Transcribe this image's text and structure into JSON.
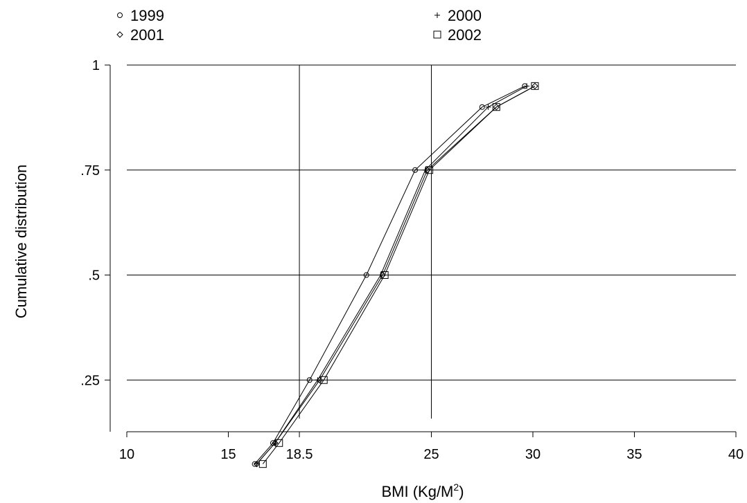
{
  "chart_data": {
    "type": "line",
    "xlabel": "BMI (Kg/M",
    "xlabel_sup": "2",
    "xlabel_end": ")",
    "ylabel": "Cumulative distribution",
    "xlim": [
      10,
      40
    ],
    "ylim": [
      0,
      1
    ],
    "x_ticks": [
      10,
      15,
      18.5,
      25,
      30,
      35,
      40
    ],
    "x_tick_labels": [
      "10",
      "15",
      "18.5",
      "25",
      "30",
      "35",
      "40"
    ],
    "y_ticks": [
      0.25,
      0.5,
      0.75,
      1
    ],
    "y_tick_labels": [
      ".25",
      ".5",
      ".75",
      "1"
    ],
    "reference_lines_x": [
      18.5,
      25
    ],
    "grid": "horizontal",
    "legend_position": "top",
    "series": [
      {
        "name": "1999",
        "marker": "circle",
        "x": [
          16.3,
          17.2,
          19.0,
          21.8,
          24.2,
          27.5,
          29.6
        ],
        "y": [
          0.05,
          0.1,
          0.25,
          0.5,
          0.75,
          0.9,
          0.95
        ]
      },
      {
        "name": "2000",
        "marker": "plus",
        "x": [
          16.4,
          17.3,
          19.4,
          22.5,
          24.7,
          27.8,
          29.7
        ],
        "y": [
          0.05,
          0.1,
          0.25,
          0.5,
          0.75,
          0.9,
          0.95
        ]
      },
      {
        "name": "2001",
        "marker": "diamond",
        "x": [
          16.4,
          17.3,
          19.5,
          22.6,
          24.8,
          28.2,
          30.1
        ],
        "y": [
          0.05,
          0.1,
          0.25,
          0.5,
          0.75,
          0.9,
          0.95
        ]
      },
      {
        "name": "2002",
        "marker": "square",
        "x": [
          16.7,
          17.5,
          19.7,
          22.7,
          24.9,
          28.2,
          30.1
        ],
        "y": [
          0.05,
          0.1,
          0.25,
          0.5,
          0.75,
          0.9,
          0.95
        ]
      }
    ]
  }
}
